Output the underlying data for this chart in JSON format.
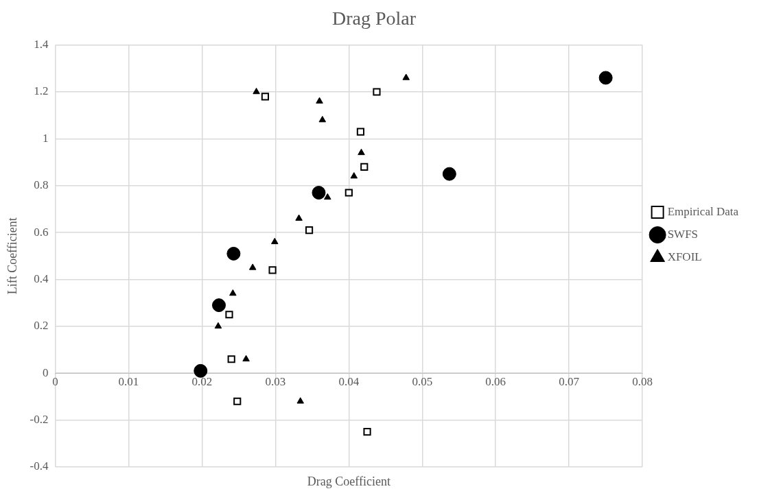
{
  "chart_data": {
    "type": "scatter",
    "title": "Drag Polar",
    "xlabel": "Drag Coefficient",
    "ylabel": "Lift Coefficient",
    "xlim": [
      0,
      0.08
    ],
    "xticks": [
      0,
      0.01,
      0.02,
      0.03,
      0.04,
      0.05,
      0.06,
      0.07,
      0.08
    ],
    "ylim": [
      -0.4,
      1.4
    ],
    "yticks": [
      -0.4,
      -0.2,
      0,
      0.2,
      0.4,
      0.6,
      0.8,
      1,
      1.2,
      1.4
    ],
    "grid": true,
    "legend": "right",
    "series": [
      {
        "name": "Empirical Data",
        "color": "#000000",
        "marker": "square",
        "x": [
          0.0286,
          0.0438,
          0.0416,
          0.0421,
          0.04,
          0.0346,
          0.0296,
          0.0237,
          0.024,
          0.0248,
          0.0425
        ],
        "values": [
          1.18,
          1.2,
          1.03,
          0.88,
          0.77,
          0.61,
          0.44,
          0.25,
          0.06,
          -0.12,
          -0.25
        ]
      },
      {
        "name": "SWFS",
        "color": "#000000",
        "marker": "circle",
        "x": [
          0.0198,
          0.0223,
          0.0243,
          0.0359,
          0.0537,
          0.075
        ],
        "values": [
          0.01,
          0.29,
          0.51,
          0.77,
          0.85,
          1.26
        ]
      },
      {
        "name": "XFOIL",
        "color": "#000000",
        "marker": "triangle",
        "x": [
          0.0274,
          0.036,
          0.0364,
          0.0417,
          0.0407,
          0.0371,
          0.0478,
          0.0332,
          0.0299,
          0.0269,
          0.0242,
          0.0222,
          0.026,
          0.0334
        ],
        "values": [
          1.2,
          1.16,
          1.08,
          0.94,
          0.84,
          0.75,
          1.26,
          0.66,
          0.56,
          0.45,
          0.34,
          0.2,
          0.06,
          -0.12
        ]
      }
    ]
  }
}
